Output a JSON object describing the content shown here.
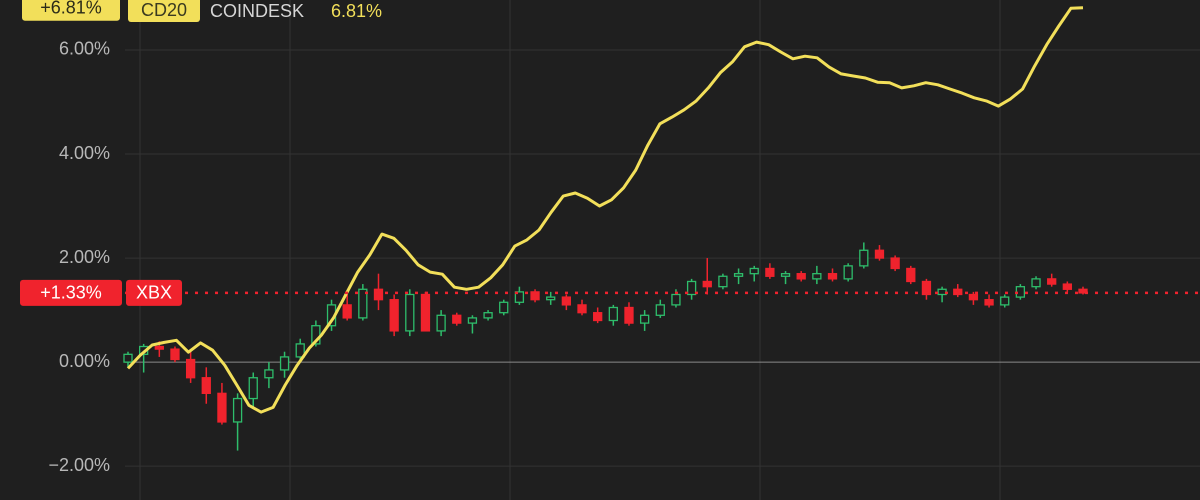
{
  "chart_data": {
    "type": "candlestick",
    "ylim": [
      -2.65,
      6.96
    ],
    "yticks": [
      {
        "value": 6,
        "label": "6.00%"
      },
      {
        "value": 4,
        "label": "4.00%"
      },
      {
        "value": 2,
        "label": "2.00%"
      },
      {
        "value": 0,
        "label": "0.00%"
      },
      {
        "value": -2,
        "label": "−2.00%"
      }
    ],
    "grid": true,
    "series": [
      {
        "name": "CD20",
        "source": "COINDESK",
        "type": "line",
        "color": "#f2df5a",
        "badge_label": "+6.81%",
        "header_label": "6.81%",
        "values": [
          -0.12,
          0.13,
          0.33,
          0.38,
          0.42,
          0.19,
          0.37,
          0.23,
          -0.06,
          -0.44,
          -0.83,
          -0.96,
          -0.87,
          -0.44,
          -0.06,
          0.27,
          0.52,
          0.85,
          1.29,
          1.73,
          2.06,
          2.46,
          2.38,
          2.15,
          1.87,
          1.73,
          1.69,
          1.44,
          1.4,
          1.44,
          1.62,
          1.87,
          2.23,
          2.35,
          2.54,
          2.88,
          3.19,
          3.25,
          3.15,
          3.0,
          3.12,
          3.35,
          3.69,
          4.17,
          4.58,
          4.71,
          4.85,
          5.02,
          5.27,
          5.56,
          5.77,
          6.06,
          6.15,
          6.1,
          5.96,
          5.83,
          5.88,
          5.85,
          5.67,
          5.54,
          5.5,
          5.46,
          5.38,
          5.37,
          5.27,
          5.31,
          5.37,
          5.33,
          5.25,
          5.17,
          5.08,
          5.02,
          4.92,
          5.06,
          5.25,
          5.69,
          6.1,
          6.46,
          6.8,
          6.81
        ]
      },
      {
        "name": "XBX",
        "type": "candlestick",
        "up_color": "#2ebd6b",
        "down_color": "#f0232d",
        "badge_label": "+1.33%",
        "open": [
          0.0,
          0.15,
          0.3,
          0.25,
          0.05,
          -0.3,
          -0.6,
          -1.15,
          -0.7,
          -0.3,
          -0.15,
          0.1,
          0.35,
          0.7,
          1.1,
          0.85,
          1.4,
          1.2,
          0.6,
          1.3,
          0.6,
          0.9,
          0.75,
          0.85,
          0.95,
          1.15,
          1.35,
          1.2,
          1.25,
          1.1,
          0.95,
          0.8,
          1.05,
          0.75,
          0.9,
          1.1,
          1.3,
          1.55,
          1.45,
          1.65,
          1.7,
          1.8,
          1.65,
          1.7,
          1.6,
          1.7,
          1.6,
          1.85,
          2.15,
          2.0,
          1.8,
          1.55,
          1.3,
          1.4,
          1.3,
          1.2,
          1.1,
          1.25,
          1.45,
          1.6,
          1.5,
          1.4
        ],
        "high": [
          0.2,
          0.35,
          0.4,
          0.3,
          0.2,
          -0.1,
          -0.4,
          -0.6,
          -0.2,
          0.0,
          0.2,
          0.45,
          0.8,
          1.2,
          1.3,
          1.5,
          1.7,
          1.3,
          1.4,
          1.35,
          1.0,
          0.95,
          0.9,
          1.0,
          1.2,
          1.45,
          1.4,
          1.35,
          1.3,
          1.2,
          1.05,
          1.1,
          1.15,
          1.0,
          1.2,
          1.4,
          1.6,
          2.0,
          1.7,
          1.8,
          1.85,
          1.9,
          1.75,
          1.75,
          1.85,
          1.8,
          1.9,
          2.3,
          2.25,
          2.05,
          1.85,
          1.6,
          1.45,
          1.5,
          1.35,
          1.3,
          1.3,
          1.5,
          1.65,
          1.7,
          1.55,
          1.45
        ],
        "low": [
          -0.1,
          -0.2,
          0.1,
          0.0,
          -0.4,
          -0.8,
          -1.2,
          -1.7,
          -0.9,
          -0.5,
          -0.3,
          0.0,
          0.3,
          0.6,
          0.8,
          0.8,
          1.0,
          0.5,
          0.5,
          0.6,
          0.5,
          0.7,
          0.55,
          0.8,
          0.9,
          1.1,
          1.15,
          1.1,
          1.0,
          0.9,
          0.75,
          0.7,
          0.7,
          0.6,
          0.85,
          1.05,
          1.2,
          1.3,
          1.4,
          1.5,
          1.55,
          1.6,
          1.5,
          1.55,
          1.5,
          1.55,
          1.55,
          1.8,
          1.95,
          1.75,
          1.5,
          1.2,
          1.15,
          1.25,
          1.1,
          1.05,
          1.05,
          1.2,
          1.4,
          1.45,
          1.35,
          1.3
        ],
        "close": [
          0.15,
          0.3,
          0.25,
          0.05,
          -0.3,
          -0.6,
          -1.15,
          -0.7,
          -0.3,
          -0.15,
          0.1,
          0.35,
          0.7,
          1.1,
          0.85,
          1.4,
          1.2,
          0.6,
          1.3,
          0.6,
          0.9,
          0.75,
          0.85,
          0.95,
          1.15,
          1.35,
          1.2,
          1.25,
          1.1,
          0.95,
          0.8,
          1.05,
          0.75,
          0.9,
          1.1,
          1.3,
          1.55,
          1.45,
          1.65,
          1.7,
          1.8,
          1.65,
          1.7,
          1.6,
          1.7,
          1.6,
          1.85,
          2.15,
          2.0,
          1.8,
          1.55,
          1.3,
          1.4,
          1.3,
          1.2,
          1.1,
          1.25,
          1.45,
          1.6,
          1.5,
          1.4,
          1.33
        ]
      }
    ]
  }
}
